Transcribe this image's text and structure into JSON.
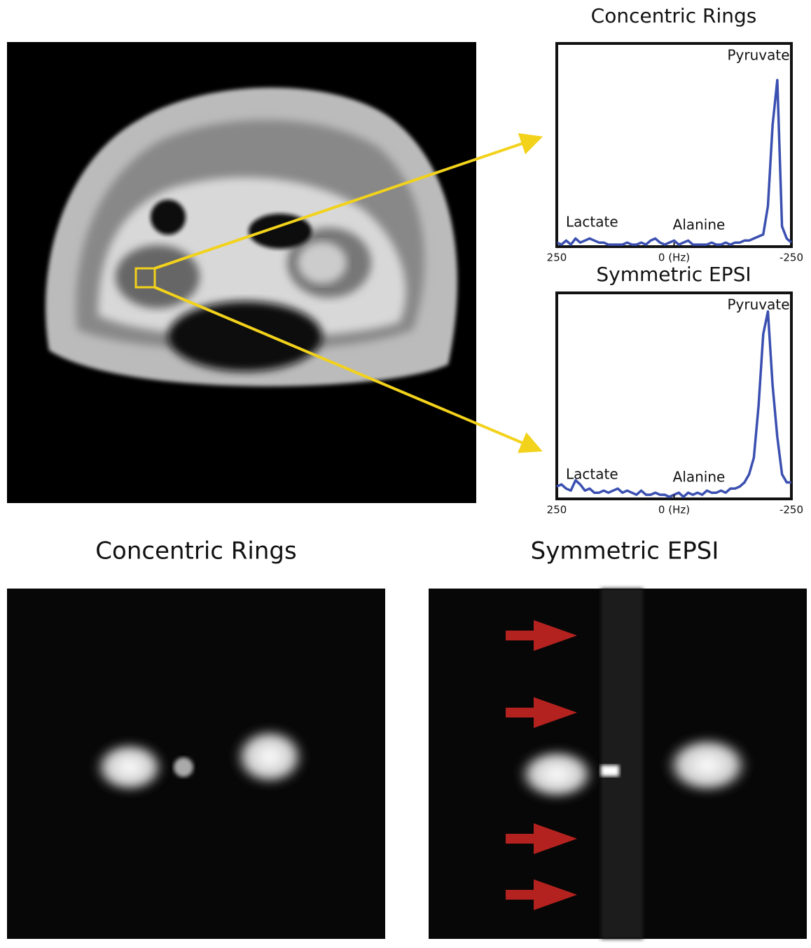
{
  "chart_data": [
    {
      "type": "line",
      "title": "Concentric Rings",
      "x": [
        250,
        240,
        230,
        220,
        210,
        200,
        190,
        180,
        170,
        160,
        150,
        140,
        130,
        120,
        110,
        100,
        90,
        80,
        70,
        60,
        50,
        40,
        30,
        20,
        10,
        0,
        -10,
        -20,
        -30,
        -40,
        -50,
        -60,
        -70,
        -80,
        -90,
        -100,
        -110,
        -120,
        -130,
        -140,
        -150,
        -160,
        -170,
        -180,
        -190,
        -200,
        -210,
        -220,
        -230,
        -240,
        -250
      ],
      "values": [
        2,
        1,
        3,
        1,
        4,
        2,
        3,
        4,
        3,
        2,
        2,
        1,
        1,
        1,
        1,
        2,
        1,
        1,
        2,
        1,
        3,
        4,
        2,
        1,
        2,
        3,
        1,
        2,
        3,
        1,
        1,
        1,
        1,
        2,
        1,
        1,
        2,
        1,
        2,
        2,
        3,
        3,
        4,
        5,
        6,
        20,
        60,
        82,
        10,
        4,
        2
      ],
      "color": "#3a4fb0",
      "xlim": [
        250,
        -250
      ],
      "ylim": [
        0,
        100
      ],
      "xticks": [
        250,
        {
          "value": 0,
          "label": "0 (Hz)"
        },
        -250
      ],
      "annotations": [
        "Pyruvate",
        "Lactate",
        "Alanine"
      ]
    },
    {
      "type": "line",
      "title": "Symmetric EPSI",
      "x": [
        250,
        240,
        230,
        220,
        210,
        200,
        190,
        180,
        170,
        160,
        150,
        140,
        130,
        120,
        110,
        100,
        90,
        80,
        70,
        60,
        50,
        40,
        30,
        20,
        10,
        0,
        -10,
        -20,
        -30,
        -40,
        -50,
        -60,
        -70,
        -80,
        -90,
        -100,
        -110,
        -120,
        -130,
        -140,
        -150,
        -160,
        -170,
        -180,
        -190,
        -200,
        -210,
        -220,
        -230,
        -240,
        -250
      ],
      "values": [
        6,
        7,
        5,
        4,
        9,
        7,
        4,
        5,
        3,
        3,
        4,
        3,
        4,
        5,
        3,
        4,
        3,
        2,
        4,
        2,
        2,
        3,
        2,
        2,
        1,
        2,
        3,
        1,
        3,
        2,
        3,
        2,
        4,
        3,
        3,
        4,
        3,
        5,
        5,
        6,
        8,
        12,
        20,
        45,
        80,
        91,
        55,
        30,
        12,
        8,
        8
      ],
      "color": "#3a4fb0",
      "xlim": [
        250,
        -250
      ],
      "ylim": [
        0,
        100
      ],
      "xticks": [
        250,
        {
          "value": 0,
          "label": "0 (Hz)"
        },
        -250
      ],
      "annotations": [
        "Pyruvate",
        "Lactate",
        "Alanine"
      ]
    }
  ],
  "images": [
    {
      "title": "Concentric Rings"
    },
    {
      "title": "Symmetric EPSI"
    }
  ]
}
